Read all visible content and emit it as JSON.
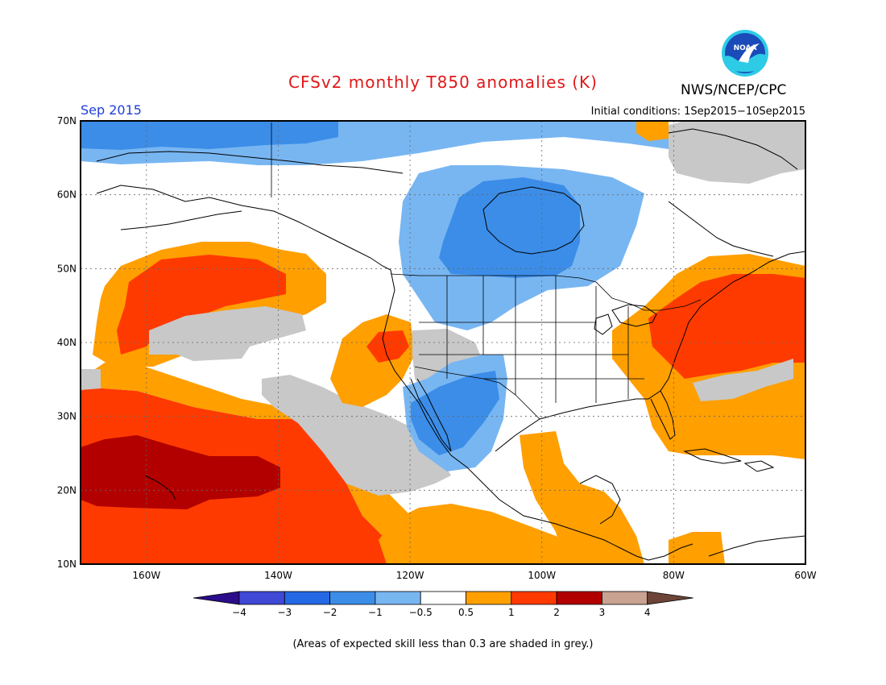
{
  "header": {
    "title": "CFSv2 monthly T850 anomalies (K)",
    "agency": "NWS/NCEP/CPC",
    "logo_text": "NOAA"
  },
  "map": {
    "month_label": "Sep 2015",
    "initial_conditions": "Initial conditions: 1Sep2015−10Sep2015",
    "lat_labels": [
      "70N",
      "60N",
      "50N",
      "40N",
      "30N",
      "20N",
      "10N"
    ],
    "lon_labels": [
      "160W",
      "140W",
      "120W",
      "100W",
      "80W",
      "60W"
    ],
    "lat_values": [
      70,
      60,
      50,
      40,
      30,
      20,
      10
    ],
    "lon_values": [
      -160,
      -140,
      -120,
      -100,
      -80,
      -60
    ],
    "domain": {
      "lon_min": -170,
      "lon_max": -60,
      "lat_min": 10,
      "lat_max": 70
    }
  },
  "colorbar": {
    "tick_labels": [
      "−4",
      "−3",
      "−2",
      "−1",
      "−0.5",
      "0.5",
      "1",
      "2",
      "3",
      "4"
    ],
    "colors": [
      "#3d17b8",
      "#4048d6",
      "#2468e3",
      "#3b8de8",
      "#78b6f2",
      "#ffffff",
      "#ff9f00",
      "#ff3a00",
      "#b20000",
      "#c9a292",
      "#6d4437"
    ],
    "low_end_color": "#2b0d8c",
    "high_end_color": "#6d4437"
  },
  "footnote": "(Areas of expected skill less than 0.3 are shaded in grey.)"
}
